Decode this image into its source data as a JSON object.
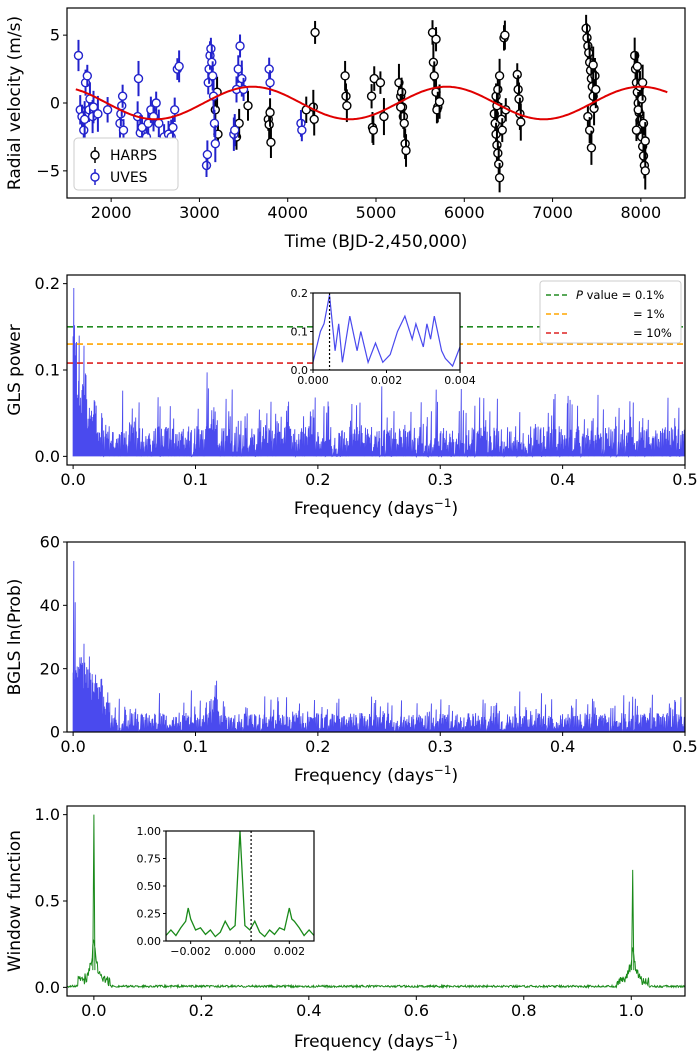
{
  "chart_data": [
    {
      "type": "scatter",
      "xlabel": "Time (BJD-2,450,000)",
      "ylabel": "Radial velocity (m/s)",
      "xlim": [
        1500,
        8500
      ],
      "ylim": [
        -7,
        7
      ],
      "xticks": [
        "2000",
        "3000",
        "4000",
        "5000",
        "6000",
        "7000",
        "8000"
      ],
      "yticks": [
        "−5",
        "0",
        "5"
      ],
      "legend_position": "lower-left",
      "colors": {
        "harps": "#000000",
        "uves": "#2222cc",
        "model": "#e00000"
      },
      "series": [
        {
          "name": "HARPS",
          "points": [
            [
              3180,
              -0.5
            ],
            [
              3200,
              0.8
            ],
            [
              3210,
              -2.3
            ],
            [
              3420,
              -2.5
            ],
            [
              3450,
              -1.5
            ],
            [
              3550,
              -0.2
            ],
            [
              3780,
              -1.2
            ],
            [
              3790,
              -1.6
            ],
            [
              3810,
              -2.9
            ],
            [
              3800,
              -0.7
            ],
            [
              4210,
              -0.5
            ],
            [
              4290,
              -0.3
            ],
            [
              4300,
              -1.2
            ],
            [
              4310,
              5.2
            ],
            [
              4650,
              2.0
            ],
            [
              4660,
              0.5
            ],
            [
              4670,
              -0.2
            ],
            [
              4950,
              0.5
            ],
            [
              4960,
              -1.8
            ],
            [
              4970,
              -2.0
            ],
            [
              4980,
              1.8
            ],
            [
              5050,
              1.5
            ],
            [
              5090,
              -1.0
            ],
            [
              5260,
              1.5
            ],
            [
              5280,
              0.5
            ],
            [
              5290,
              0.8
            ],
            [
              5300,
              -0.3
            ],
            [
              5310,
              -1.0
            ],
            [
              5320,
              -1.5
            ],
            [
              5330,
              -3.0
            ],
            [
              5340,
              -3.5
            ],
            [
              5280,
              -0.3
            ],
            [
              5640,
              5.2
            ],
            [
              5650,
              3.0
            ],
            [
              5660,
              2.0
            ],
            [
              5680,
              0.8
            ],
            [
              5700,
              -0.3
            ],
            [
              5690,
              -0.5
            ],
            [
              5680,
              4.7
            ],
            [
              5720,
              0.1
            ],
            [
              6340,
              -0.8
            ],
            [
              6350,
              -1.5
            ],
            [
              6360,
              -2.3
            ],
            [
              6370,
              -3.1
            ],
            [
              6380,
              -3.7
            ],
            [
              6390,
              -4.5
            ],
            [
              6400,
              -5.5
            ],
            [
              6360,
              0.5
            ],
            [
              6370,
              -0.2
            ],
            [
              6380,
              1.0
            ],
            [
              6400,
              2.0
            ],
            [
              6420,
              -1.2
            ],
            [
              6430,
              -2.0
            ],
            [
              6450,
              4.8
            ],
            [
              6460,
              5.0
            ],
            [
              6470,
              -0.5
            ],
            [
              6600,
              2.1
            ],
            [
              6610,
              1.0
            ],
            [
              6620,
              0.3
            ],
            [
              6630,
              -0.8
            ],
            [
              6640,
              -1.4
            ],
            [
              7380,
              5.5
            ],
            [
              7390,
              4.8
            ],
            [
              7400,
              4.2
            ],
            [
              7410,
              3.7
            ],
            [
              7420,
              3.0
            ],
            [
              7430,
              2.4
            ],
            [
              7440,
              1.8
            ],
            [
              7450,
              1.2
            ],
            [
              7460,
              0.5
            ],
            [
              7470,
              -0.4
            ],
            [
              7400,
              -1.0
            ],
            [
              7420,
              -2.0
            ],
            [
              7440,
              -3.3
            ],
            [
              7480,
              2.0
            ],
            [
              7490,
              1.0
            ],
            [
              7460,
              2.8
            ],
            [
              7930,
              3.5
            ],
            [
              7940,
              2.5
            ],
            [
              7950,
              1.5
            ],
            [
              7960,
              0.8
            ],
            [
              7970,
              0.0
            ],
            [
              7980,
              -0.7
            ],
            [
              7990,
              -1.3
            ],
            [
              8000,
              -1.9
            ],
            [
              8010,
              -2.5
            ],
            [
              8020,
              -3.2
            ],
            [
              8030,
              -3.9
            ],
            [
              8040,
              -4.6
            ],
            [
              8050,
              -5.0
            ],
            [
              7950,
              -2.0
            ],
            [
              7970,
              -0.5
            ],
            [
              7990,
              1.2
            ],
            [
              8010,
              0.3
            ],
            [
              8030,
              -1.5
            ],
            [
              8050,
              -2.8
            ],
            [
              7960,
              2.7
            ],
            [
              8020,
              1.5
            ]
          ]
        },
        {
          "name": "UVES",
          "points": [
            [
              1630,
              3.5
            ],
            [
              1650,
              -0.5
            ],
            [
              1670,
              -1.0
            ],
            [
              1690,
              -2.0
            ],
            [
              1700,
              -1.2
            ],
            [
              1710,
              1.5
            ],
            [
              1730,
              2.0
            ],
            [
              1750,
              -0.5
            ],
            [
              1760,
              0.3
            ],
            [
              1790,
              -1.0
            ],
            [
              1800,
              -0.3
            ],
            [
              1850,
              -0.8
            ],
            [
              1960,
              -0.5
            ],
            [
              2100,
              -1.5
            ],
            [
              2110,
              -0.8
            ],
            [
              2120,
              -0.2
            ],
            [
              2130,
              0.5
            ],
            [
              2140,
              -2.0
            ],
            [
              2300,
              -1.0
            ],
            [
              2310,
              1.8
            ],
            [
              2330,
              -2.2
            ],
            [
              2350,
              -1.8
            ],
            [
              2400,
              -2.5
            ],
            [
              2420,
              -1.5
            ],
            [
              2450,
              -0.5
            ],
            [
              2480,
              -1.0
            ],
            [
              2510,
              0.0
            ],
            [
              2540,
              -1.5
            ],
            [
              2600,
              -2.5
            ],
            [
              2650,
              -2.3
            ],
            [
              2680,
              -2.5
            ],
            [
              2700,
              -1.8
            ],
            [
              2720,
              -0.5
            ],
            [
              2750,
              2.5
            ],
            [
              2770,
              2.7
            ],
            [
              3080,
              -4.6
            ],
            [
              3090,
              -3.8
            ],
            [
              3100,
              1.5
            ],
            [
              3110,
              2.5
            ],
            [
              3120,
              3.5
            ],
            [
              3130,
              4.0
            ],
            [
              3140,
              3.0
            ],
            [
              3150,
              2.0
            ],
            [
              3160,
              0.5
            ],
            [
              3170,
              -1.5
            ],
            [
              3180,
              -3.0
            ],
            [
              3390,
              -2.3
            ],
            [
              3400,
              -2.0
            ],
            [
              3420,
              1.0
            ],
            [
              3440,
              2.5
            ],
            [
              3460,
              4.2
            ],
            [
              3480,
              1.8
            ],
            [
              3500,
              1.0
            ],
            [
              3790,
              2.5
            ],
            [
              3800,
              1.5
            ],
            [
              4150,
              -1.5
            ],
            [
              4160,
              -2.0
            ]
          ]
        },
        {
          "name": "model",
          "amplitude": 1.2,
          "period": 2200,
          "phase_zero": 2500,
          "xrange": [
            1600,
            8300
          ]
        }
      ]
    },
    {
      "type": "line",
      "xlabel": "Frequency (days",
      "xlabel_sup": "−1",
      "xlabel_tail": ")",
      "ylabel": "GLS power",
      "xlim": [
        -0.005,
        0.5
      ],
      "ylim": [
        -0.01,
        0.21
      ],
      "xticks": [
        "0.0",
        "0.1",
        "0.2",
        "0.3",
        "0.4",
        "0.5"
      ],
      "yticks": [
        "0.0",
        "0.1",
        "0.2"
      ],
      "color": "#4a4aee",
      "peak": {
        "x": 0.00045,
        "y": 0.195
      },
      "thresholds": [
        {
          "label_prefix": "P",
          "label": " value = 0.1%",
          "value": 0.15,
          "color": "#228b22"
        },
        {
          "label": "= 1%",
          "value": 0.13,
          "color": "#ffa500"
        },
        {
          "label": "= 10%",
          "value": 0.108,
          "color": "#dd2222"
        }
      ],
      "legend_position": "top-right",
      "inset": {
        "xlim": [
          0,
          0.004
        ],
        "ylim": [
          0,
          0.2
        ],
        "xticks": [
          "0.000",
          "0.002",
          "0.004"
        ],
        "yticks": [
          "0.0",
          "0.1",
          "0.2"
        ],
        "marker_x": 0.00045
      }
    },
    {
      "type": "line",
      "xlabel": "Frequency (days",
      "xlabel_sup": "−1",
      "xlabel_tail": ")",
      "ylabel": "BGLS ln(Prob)",
      "xlim": [
        -0.005,
        0.5
      ],
      "ylim": [
        0,
        60
      ],
      "xticks": [
        "0.0",
        "0.1",
        "0.2",
        "0.3",
        "0.4",
        "0.5"
      ],
      "yticks": [
        "0",
        "20",
        "40",
        "60"
      ],
      "color": "#4a4aee",
      "peak": {
        "x": 0.00045,
        "y": 54
      }
    },
    {
      "type": "line",
      "xlabel": "Frequency (days",
      "xlabel_sup": "−1",
      "xlabel_tail": ")",
      "ylabel": "Window function",
      "xlim": [
        -0.05,
        1.1
      ],
      "ylim": [
        -0.05,
        1.05
      ],
      "xticks": [
        "0.0",
        "0.2",
        "0.4",
        "0.6",
        "0.8",
        "1.0"
      ],
      "yticks": [
        "0.0",
        "0.5",
        "1.0"
      ],
      "color": "#1a8a1a",
      "peaks": [
        {
          "x": 0.0,
          "y": 1.0
        },
        {
          "x": 1.0027,
          "y": 0.68
        }
      ],
      "inset": {
        "xlim": [
          -0.003,
          0.003
        ],
        "ylim": [
          0,
          1
        ],
        "xticks": [
          "−0.002",
          "0.000",
          "0.002"
        ],
        "yticks": [
          "0.00",
          "0.25",
          "0.50",
          "0.75",
          "1.00"
        ],
        "marker_x": 0.00045
      }
    }
  ]
}
